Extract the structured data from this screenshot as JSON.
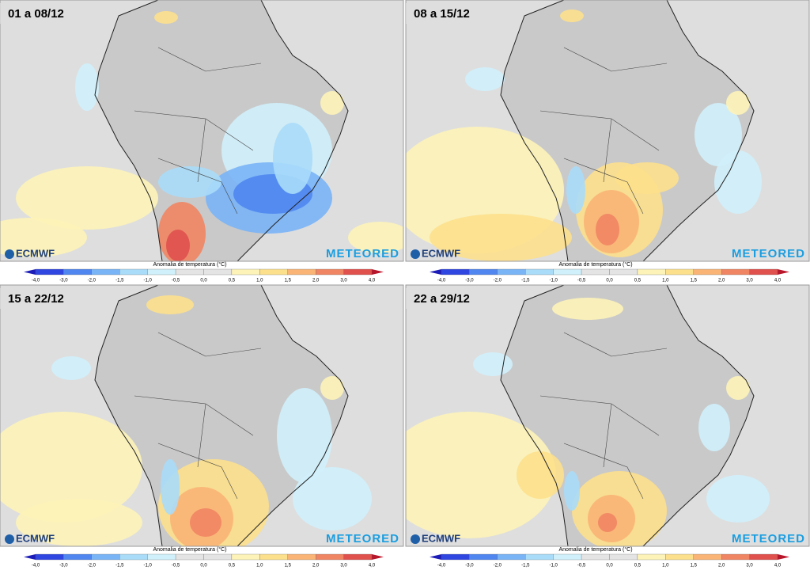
{
  "panels": [
    {
      "label": "01 a 08/12"
    },
    {
      "label": "08 a 15/12"
    },
    {
      "label": "15 a 22/12"
    },
    {
      "label": "22 a 29/12"
    }
  ],
  "colorbar": {
    "title": "Anomalia de temperatura (°C)",
    "ticks": [
      "-4,0",
      "-3,0",
      "-2,0",
      "-1,5",
      "-1,0",
      "-0,5",
      "0,0",
      "0,5",
      "1,0",
      "1,5",
      "2,0",
      "3,0",
      "4,0"
    ],
    "colors": [
      "#1c1cb8",
      "#2f46e0",
      "#4f86ef",
      "#79b4f7",
      "#a8dcf9",
      "#d0f0fb",
      "#e4e4e4",
      "#e4e4e4",
      "#fdf3b8",
      "#fde08c",
      "#f9b476",
      "#f08563",
      "#e0504c",
      "#b8162b"
    ]
  },
  "logos": {
    "ecmwf": "ECMWF",
    "meteored": "METEORED"
  }
}
